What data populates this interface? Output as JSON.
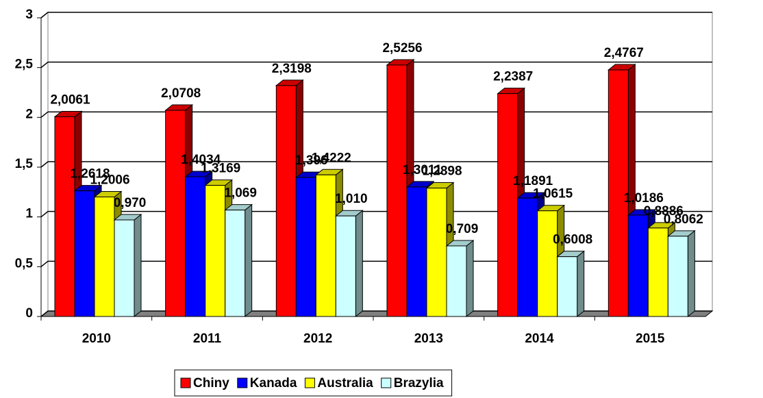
{
  "chart_data": {
    "type": "bar3d",
    "categories": [
      "2010",
      "2011",
      "2012",
      "2013",
      "2014",
      "2015"
    ],
    "series": [
      {
        "name": "Chiny",
        "color": "#ff0000",
        "values": [
          2.0061,
          2.0708,
          2.3198,
          2.5256,
          2.2387,
          2.4767
        ],
        "value_labels": [
          "2,0061",
          "2,0708",
          "2,3198",
          "2,5256",
          "2,2387",
          "2,4767"
        ]
      },
      {
        "name": "Kanada",
        "color": "#0000ff",
        "values": [
          1.2618,
          1.4034,
          1.396,
          1.3011,
          1.1891,
          1.0186
        ],
        "value_labels": [
          "1,2618",
          "1,4034",
          "1,396",
          "1,3011",
          "1,1891",
          "1,0186"
        ]
      },
      {
        "name": "Australia",
        "color": "#ffff00",
        "values": [
          1.2006,
          1.3169,
          1.4222,
          1.2898,
          1.0615,
          0.8886
        ],
        "value_labels": [
          "1,2006",
          "1,3169",
          "1,4222",
          "1,2898",
          "1,0615",
          "0,8886"
        ]
      },
      {
        "name": "Brazylia",
        "color": "#ccffff",
        "values": [
          0.97,
          1.069,
          1.01,
          0.709,
          0.6008,
          0.8062
        ],
        "value_labels": [
          "0,970",
          "1,069",
          "1,010",
          "0,709",
          "0,6008",
          "0,8062"
        ]
      }
    ],
    "ylim": [
      0,
      3
    ],
    "yticks": [
      0,
      {
        "value": 0.5,
        "label": "0,5"
      },
      1,
      {
        "value": 1.5,
        "label": "1,5"
      },
      2,
      {
        "value": 2.5,
        "label": "2,5"
      },
      3
    ],
    "grid": true,
    "legend": "bottom"
  }
}
